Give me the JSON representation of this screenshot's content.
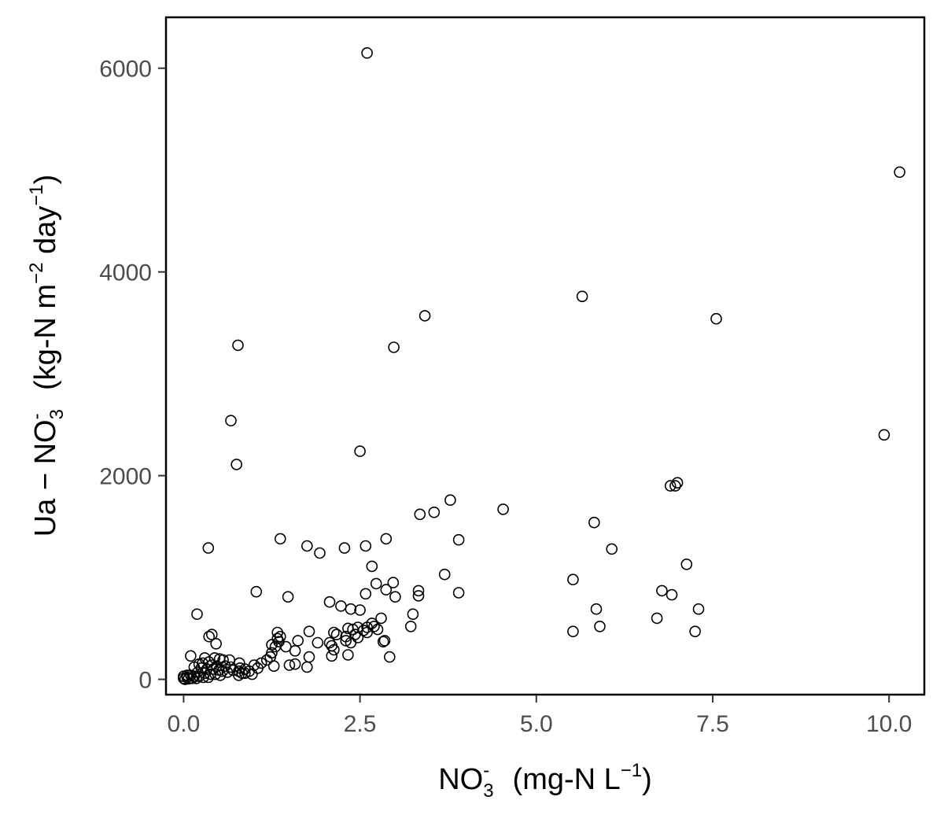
{
  "chart_data": {
    "type": "scatter",
    "xlabel": {
      "base": "NO",
      "sub": "3",
      "sup": "-",
      "units_a": "(mg-N L",
      "units_sup": "−1",
      "units_b": ")"
    },
    "ylabel": {
      "lead": "Ua − NO",
      "sub": "3",
      "sup": "-",
      "units_a": "(kg-N  m",
      "sup2": "−2",
      "units_b": " day",
      "sup3": "−1",
      "units_c": ")"
    },
    "xlim": [
      -0.25,
      10.5
    ],
    "ylim": [
      -150,
      6500
    ],
    "x_ticks": [
      0.0,
      2.5,
      5.0,
      7.5,
      10.0
    ],
    "x_tick_labels": [
      "0.0",
      "2.5",
      "5.0",
      "7.5",
      "10.0"
    ],
    "y_ticks": [
      0,
      2000,
      4000,
      6000
    ],
    "y_tick_labels": [
      "0",
      "2000",
      "4000",
      "6000"
    ],
    "grid": false,
    "marker": "open-circle",
    "points": [
      [
        2.6,
        6150
      ],
      [
        10.15,
        4980
      ],
      [
        5.65,
        3760
      ],
      [
        7.55,
        3540
      ],
      [
        3.42,
        3570
      ],
      [
        0.77,
        3280
      ],
      [
        2.98,
        3260
      ],
      [
        0.67,
        2540
      ],
      [
        0.75,
        2110
      ],
      [
        2.5,
        2240
      ],
      [
        9.93,
        2400
      ],
      [
        7.0,
        1930
      ],
      [
        6.9,
        1900
      ],
      [
        6.97,
        1900
      ],
      [
        3.78,
        1760
      ],
      [
        4.53,
        1670
      ],
      [
        3.55,
        1640
      ],
      [
        3.35,
        1620
      ],
      [
        5.82,
        1540
      ],
      [
        1.37,
        1380
      ],
      [
        2.87,
        1380
      ],
      [
        3.9,
        1370
      ],
      [
        1.75,
        1310
      ],
      [
        2.28,
        1290
      ],
      [
        2.58,
        1310
      ],
      [
        1.93,
        1240
      ],
      [
        6.07,
        1280
      ],
      [
        0.35,
        1290
      ],
      [
        7.13,
        1130
      ],
      [
        2.67,
        1110
      ],
      [
        3.7,
        1030
      ],
      [
        5.52,
        980
      ],
      [
        2.73,
        940
      ],
      [
        2.97,
        950
      ],
      [
        2.87,
        880
      ],
      [
        3.33,
        870
      ],
      [
        6.78,
        870
      ],
      [
        3.9,
        850
      ],
      [
        1.03,
        860
      ],
      [
        2.58,
        840
      ],
      [
        6.92,
        830
      ],
      [
        3.0,
        810
      ],
      [
        3.33,
        820
      ],
      [
        1.48,
        810
      ],
      [
        2.07,
        760
      ],
      [
        2.23,
        720
      ],
      [
        2.37,
        690
      ],
      [
        2.5,
        680
      ],
      [
        5.85,
        690
      ],
      [
        7.3,
        690
      ],
      [
        0.19,
        640
      ],
      [
        3.25,
        640
      ],
      [
        6.71,
        600
      ],
      [
        2.8,
        600
      ],
      [
        2.67,
        550
      ],
      [
        2.7,
        520
      ],
      [
        2.6,
        510
      ],
      [
        3.22,
        520
      ],
      [
        5.9,
        520
      ],
      [
        2.47,
        510
      ],
      [
        2.33,
        500
      ],
      [
        2.4,
        490
      ],
      [
        2.55,
        480
      ],
      [
        2.75,
        490
      ],
      [
        2.6,
        460
      ],
      [
        5.52,
        470
      ],
      [
        7.25,
        470
      ],
      [
        2.3,
        420
      ],
      [
        2.43,
        440
      ],
      [
        2.13,
        460
      ],
      [
        2.17,
        440
      ],
      [
        2.47,
        410
      ],
      [
        2.3,
        380
      ],
      [
        2.37,
        360
      ],
      [
        2.83,
        370
      ],
      [
        2.85,
        380
      ],
      [
        1.78,
        470
      ],
      [
        1.33,
        460
      ],
      [
        0.4,
        440
      ],
      [
        1.37,
        420
      ],
      [
        1.33,
        400
      ],
      [
        1.62,
        380
      ],
      [
        1.35,
        370
      ],
      [
        1.25,
        340
      ],
      [
        1.3,
        320
      ],
      [
        1.9,
        360
      ],
      [
        2.07,
        360
      ],
      [
        2.1,
        330
      ],
      [
        1.45,
        320
      ],
      [
        1.58,
        280
      ],
      [
        1.25,
        260
      ],
      [
        1.23,
        220
      ],
      [
        2.1,
        230
      ],
      [
        2.33,
        240
      ],
      [
        2.92,
        220
      ],
      [
        2.13,
        290
      ],
      [
        1.78,
        220
      ],
      [
        1.18,
        190
      ],
      [
        1.1,
        160
      ],
      [
        1.28,
        130
      ],
      [
        1.5,
        140
      ],
      [
        1.58,
        150
      ],
      [
        1.75,
        120
      ],
      [
        1.0,
        140
      ],
      [
        1.05,
        110
      ],
      [
        0.93,
        80
      ],
      [
        0.87,
        100
      ],
      [
        0.83,
        60
      ],
      [
        0.78,
        40
      ],
      [
        0.97,
        50
      ],
      [
        0.46,
        350
      ],
      [
        0.36,
        420
      ],
      [
        0.1,
        230
      ],
      [
        0.3,
        210
      ],
      [
        0.44,
        210
      ],
      [
        0.51,
        200
      ],
      [
        0.56,
        190
      ],
      [
        0.65,
        190
      ],
      [
        0.79,
        160
      ],
      [
        0.36,
        170
      ],
      [
        0.27,
        160
      ],
      [
        0.22,
        150
      ],
      [
        0.4,
        140
      ],
      [
        0.47,
        130
      ],
      [
        0.59,
        130
      ],
      [
        0.67,
        120
      ],
      [
        0.7,
        90
      ],
      [
        0.78,
        80
      ],
      [
        0.8,
        110
      ],
      [
        0.87,
        60
      ],
      [
        0.15,
        120
      ],
      [
        0.25,
        110
      ],
      [
        0.33,
        100
      ],
      [
        0.42,
        100
      ],
      [
        0.5,
        90
      ],
      [
        0.55,
        80
      ],
      [
        0.62,
        70
      ],
      [
        0.3,
        60
      ],
      [
        0.2,
        70
      ],
      [
        0.38,
        50
      ],
      [
        0.45,
        50
      ],
      [
        0.52,
        40
      ],
      [
        0.1,
        40
      ],
      [
        0.15,
        30
      ],
      [
        0.22,
        30
      ],
      [
        0.28,
        20
      ],
      [
        0.35,
        20
      ],
      [
        0.05,
        20
      ],
      [
        0.0,
        10
      ],
      [
        0.02,
        0
      ],
      [
        0.07,
        5
      ],
      [
        0.12,
        10
      ],
      [
        0.18,
        10
      ],
      [
        0.0,
        30
      ],
      [
        0.05,
        40
      ]
    ]
  }
}
